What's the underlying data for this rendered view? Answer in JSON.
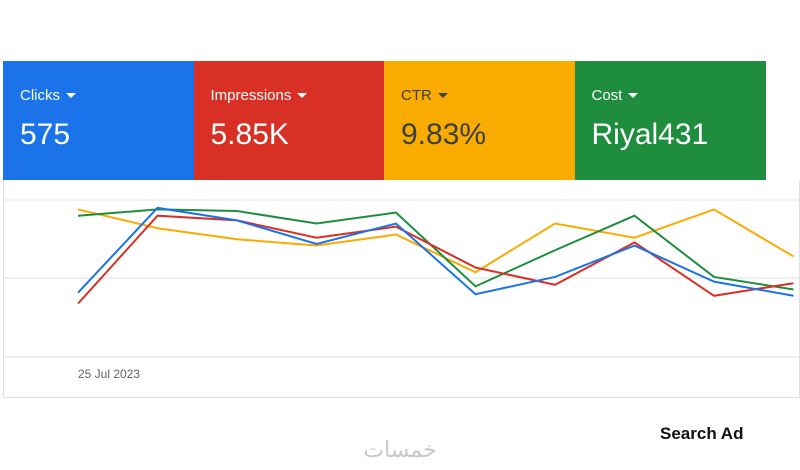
{
  "cards": [
    {
      "label": "Clicks",
      "value": "575",
      "color": "#1a73e8",
      "text_color": "#ffffff"
    },
    {
      "label": "Impressions",
      "value": "5.85K",
      "color": "#d93025",
      "text_color": "#ffffff"
    },
    {
      "label": "CTR",
      "value": "9.83%",
      "color": "#f9ab00",
      "text_color": "#3c4043"
    },
    {
      "label": "Cost",
      "value": "Riyal431",
      "color": "#1e8e3e",
      "text_color": "#ffffff"
    }
  ],
  "chart_data": {
    "type": "line",
    "categories": [
      "25 Jul 2023",
      null,
      null,
      null,
      null,
      null,
      null,
      null,
      null,
      null
    ],
    "ylim": [
      0,
      100
    ],
    "series": [
      {
        "color": "#f9ab00",
        "values": [
          94,
          82,
          75,
          71,
          78,
          54,
          85,
          76,
          94,
          64
        ]
      },
      {
        "color": "#1e8e3e",
        "values": [
          90,
          94,
          93,
          85,
          92,
          45,
          68,
          90,
          51,
          43
        ]
      },
      {
        "color": "#d93025",
        "values": [
          34,
          90,
          87,
          76,
          83,
          57,
          46,
          73,
          39,
          47
        ]
      },
      {
        "color": "#1a73e8",
        "values": [
          41,
          95,
          87,
          72,
          85,
          40,
          51,
          71,
          48,
          39
        ]
      }
    ]
  },
  "footer": {
    "caption": "Search Ad",
    "logo": "خمسات"
  }
}
